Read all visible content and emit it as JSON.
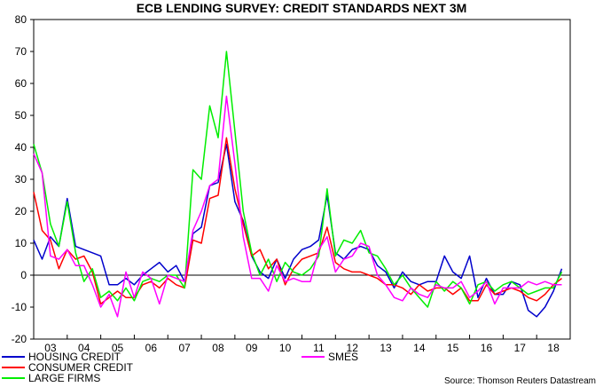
{
  "chart_data": {
    "type": "line",
    "title": "ECB LENDING SURVEY: CREDIT STANDARDS NEXT 3M",
    "source": "Source: Thomson Reuters Datastream",
    "ylim": [
      -20,
      80
    ],
    "yticks": [
      -20,
      -10,
      0,
      10,
      20,
      30,
      40,
      50,
      60,
      70,
      80
    ],
    "xlabels": [
      "03",
      "04",
      "05",
      "06",
      "07",
      "08",
      "09",
      "10",
      "11",
      "12",
      "13",
      "14",
      "15",
      "16",
      "17",
      "18"
    ],
    "x_start": 2003.0,
    "x_end": 2019.0,
    "legend_position": "bottom",
    "series": [
      {
        "name": "HOUSING CREDIT",
        "color": "#0000cc",
        "points": [
          [
            2003.0,
            11
          ],
          [
            2003.25,
            5
          ],
          [
            2003.5,
            12
          ],
          [
            2003.75,
            9
          ],
          [
            2004.0,
            24
          ],
          [
            2004.25,
            9
          ],
          [
            2004.5,
            8
          ],
          [
            2004.75,
            7
          ],
          [
            2005.0,
            6
          ],
          [
            2005.25,
            -3
          ],
          [
            2005.5,
            -3
          ],
          [
            2005.75,
            -1
          ],
          [
            2006.0,
            -3
          ],
          [
            2006.25,
            0
          ],
          [
            2006.5,
            2
          ],
          [
            2006.75,
            4
          ],
          [
            2007.0,
            1
          ],
          [
            2007.25,
            3
          ],
          [
            2007.5,
            -2
          ],
          [
            2007.75,
            13
          ],
          [
            2008.0,
            15
          ],
          [
            2008.25,
            28
          ],
          [
            2008.5,
            29
          ],
          [
            2008.75,
            41
          ],
          [
            2009.0,
            23
          ],
          [
            2009.25,
            17
          ],
          [
            2009.5,
            6
          ],
          [
            2009.75,
            1
          ],
          [
            2010.0,
            -1
          ],
          [
            2010.25,
            5
          ],
          [
            2010.5,
            -1
          ],
          [
            2010.75,
            5
          ],
          [
            2011.0,
            8
          ],
          [
            2011.25,
            9
          ],
          [
            2011.5,
            11
          ],
          [
            2011.75,
            25
          ],
          [
            2012.0,
            7
          ],
          [
            2012.25,
            5
          ],
          [
            2012.5,
            8
          ],
          [
            2012.75,
            9
          ],
          [
            2013.0,
            8
          ],
          [
            2013.25,
            3
          ],
          [
            2013.5,
            1
          ],
          [
            2013.75,
            -4
          ],
          [
            2014.0,
            1
          ],
          [
            2014.25,
            -2
          ],
          [
            2014.5,
            -3
          ],
          [
            2014.75,
            -2
          ],
          [
            2015.0,
            -2
          ],
          [
            2015.25,
            6
          ],
          [
            2015.5,
            1
          ],
          [
            2015.75,
            -1
          ],
          [
            2016.0,
            6
          ],
          [
            2016.25,
            -7
          ],
          [
            2016.5,
            -1
          ],
          [
            2016.75,
            -6
          ],
          [
            2017.0,
            -6
          ],
          [
            2017.25,
            -2
          ],
          [
            2017.5,
            -3
          ],
          [
            2017.75,
            -11
          ],
          [
            2018.0,
            -13
          ],
          [
            2018.25,
            -10
          ],
          [
            2018.5,
            -5
          ],
          [
            2018.75,
            2
          ]
        ]
      },
      {
        "name": "CONSUMER CREDIT",
        "color": "#ff0000",
        "points": [
          [
            2003.0,
            26
          ],
          [
            2003.25,
            14
          ],
          [
            2003.5,
            11
          ],
          [
            2003.75,
            2
          ],
          [
            2004.0,
            8
          ],
          [
            2004.25,
            5
          ],
          [
            2004.5,
            6
          ],
          [
            2004.75,
            1
          ],
          [
            2005.0,
            -9
          ],
          [
            2005.25,
            -7
          ],
          [
            2005.5,
            -5
          ],
          [
            2005.75,
            -7
          ],
          [
            2006.0,
            -7
          ],
          [
            2006.25,
            -3
          ],
          [
            2006.5,
            -2
          ],
          [
            2006.75,
            -4
          ],
          [
            2007.0,
            -1
          ],
          [
            2007.25,
            -3
          ],
          [
            2007.5,
            -4
          ],
          [
            2007.75,
            11
          ],
          [
            2008.0,
            10
          ],
          [
            2008.25,
            24
          ],
          [
            2008.5,
            25
          ],
          [
            2008.75,
            43
          ],
          [
            2009.0,
            27
          ],
          [
            2009.25,
            16
          ],
          [
            2009.5,
            6
          ],
          [
            2009.75,
            8
          ],
          [
            2010.0,
            2
          ],
          [
            2010.25,
            5
          ],
          [
            2010.5,
            -3
          ],
          [
            2010.75,
            2
          ],
          [
            2011.0,
            5
          ],
          [
            2011.25,
            6
          ],
          [
            2011.5,
            7
          ],
          [
            2011.75,
            15
          ],
          [
            2012.0,
            4
          ],
          [
            2012.25,
            2
          ],
          [
            2012.5,
            1
          ],
          [
            2012.75,
            1
          ],
          [
            2013.0,
            0
          ],
          [
            2013.25,
            -1
          ],
          [
            2013.5,
            -3
          ],
          [
            2013.75,
            -3
          ],
          [
            2014.0,
            -4
          ],
          [
            2014.25,
            -6
          ],
          [
            2014.5,
            -3
          ],
          [
            2014.75,
            -5
          ],
          [
            2015.0,
            -4
          ],
          [
            2015.25,
            -4
          ],
          [
            2015.5,
            -6
          ],
          [
            2015.75,
            -4
          ],
          [
            2016.0,
            -8
          ],
          [
            2016.25,
            -8
          ],
          [
            2016.5,
            -3
          ],
          [
            2016.75,
            -6
          ],
          [
            2017.0,
            -5
          ],
          [
            2017.25,
            -4
          ],
          [
            2017.5,
            -5
          ],
          [
            2017.75,
            -7
          ],
          [
            2018.0,
            -8
          ],
          [
            2018.25,
            -6
          ],
          [
            2018.5,
            -3
          ],
          [
            2018.75,
            -1
          ]
        ]
      },
      {
        "name": "LARGE FIRMS",
        "color": "#00ee00",
        "points": [
          [
            2003.0,
            41
          ],
          [
            2003.25,
            32
          ],
          [
            2003.5,
            16
          ],
          [
            2003.75,
            9
          ],
          [
            2004.0,
            23
          ],
          [
            2004.25,
            7
          ],
          [
            2004.5,
            -2
          ],
          [
            2004.75,
            2
          ],
          [
            2005.0,
            -7
          ],
          [
            2005.25,
            -5
          ],
          [
            2005.5,
            -8
          ],
          [
            2005.75,
            -4
          ],
          [
            2006.0,
            -8
          ],
          [
            2006.25,
            -2
          ],
          [
            2006.5,
            -1
          ],
          [
            2006.75,
            -2
          ],
          [
            2007.0,
            0
          ],
          [
            2007.25,
            0
          ],
          [
            2007.5,
            -4
          ],
          [
            2007.75,
            33
          ],
          [
            2008.0,
            30
          ],
          [
            2008.25,
            53
          ],
          [
            2008.5,
            43
          ],
          [
            2008.75,
            70
          ],
          [
            2009.0,
            45
          ],
          [
            2009.25,
            20
          ],
          [
            2009.5,
            7
          ],
          [
            2009.75,
            0
          ],
          [
            2010.0,
            5
          ],
          [
            2010.25,
            -2
          ],
          [
            2010.5,
            4
          ],
          [
            2010.75,
            1
          ],
          [
            2011.0,
            0
          ],
          [
            2011.25,
            2
          ],
          [
            2011.5,
            6
          ],
          [
            2011.75,
            27
          ],
          [
            2012.0,
            6
          ],
          [
            2012.25,
            11
          ],
          [
            2012.5,
            10
          ],
          [
            2012.75,
            14
          ],
          [
            2013.0,
            7
          ],
          [
            2013.25,
            6
          ],
          [
            2013.5,
            2
          ],
          [
            2013.75,
            -3
          ],
          [
            2014.0,
            0
          ],
          [
            2014.25,
            -4
          ],
          [
            2014.5,
            -7
          ],
          [
            2014.75,
            -10
          ],
          [
            2015.0,
            -2
          ],
          [
            2015.25,
            -5
          ],
          [
            2015.5,
            -2
          ],
          [
            2015.75,
            -4
          ],
          [
            2016.0,
            -9
          ],
          [
            2016.25,
            -3
          ],
          [
            2016.5,
            -2
          ],
          [
            2016.75,
            -5
          ],
          [
            2017.0,
            -3
          ],
          [
            2017.25,
            -2
          ],
          [
            2017.5,
            -4
          ],
          [
            2017.75,
            -6
          ],
          [
            2018.0,
            -5
          ],
          [
            2018.25,
            -4
          ],
          [
            2018.5,
            -4
          ],
          [
            2018.75,
            1
          ]
        ]
      },
      {
        "name": "SMES",
        "color": "#ff00ff",
        "points": [
          [
            2003.0,
            38
          ],
          [
            2003.25,
            32
          ],
          [
            2003.5,
            6
          ],
          [
            2003.75,
            5
          ],
          [
            2004.0,
            8
          ],
          [
            2004.25,
            3
          ],
          [
            2004.5,
            3
          ],
          [
            2004.75,
            -3
          ],
          [
            2005.0,
            -10
          ],
          [
            2005.25,
            -6
          ],
          [
            2005.5,
            -13
          ],
          [
            2005.75,
            1
          ],
          [
            2006.0,
            -7
          ],
          [
            2006.25,
            1
          ],
          [
            2006.5,
            -1
          ],
          [
            2006.75,
            -9
          ],
          [
            2007.0,
            0
          ],
          [
            2007.25,
            -1
          ],
          [
            2007.5,
            -2
          ],
          [
            2007.75,
            14
          ],
          [
            2008.0,
            20
          ],
          [
            2008.25,
            28
          ],
          [
            2008.5,
            30
          ],
          [
            2008.75,
            56
          ],
          [
            2009.0,
            35
          ],
          [
            2009.25,
            12
          ],
          [
            2009.5,
            -1
          ],
          [
            2009.75,
            -1
          ],
          [
            2010.0,
            -5
          ],
          [
            2010.25,
            3
          ],
          [
            2010.5,
            -2
          ],
          [
            2010.75,
            -1
          ],
          [
            2011.0,
            -2
          ],
          [
            2011.25,
            -2
          ],
          [
            2011.5,
            8
          ],
          [
            2011.75,
            12
          ],
          [
            2012.0,
            1
          ],
          [
            2012.25,
            5
          ],
          [
            2012.5,
            6
          ],
          [
            2012.75,
            10
          ],
          [
            2013.0,
            9
          ],
          [
            2013.25,
            0
          ],
          [
            2013.5,
            -3
          ],
          [
            2013.75,
            -7
          ],
          [
            2014.0,
            -8
          ],
          [
            2014.25,
            -4
          ],
          [
            2014.5,
            -6
          ],
          [
            2014.75,
            -7
          ],
          [
            2015.0,
            -3
          ],
          [
            2015.25,
            -4
          ],
          [
            2015.5,
            -4
          ],
          [
            2015.75,
            -2
          ],
          [
            2016.0,
            -7
          ],
          [
            2016.25,
            -5
          ],
          [
            2016.5,
            -2
          ],
          [
            2016.75,
            -9
          ],
          [
            2017.0,
            -4
          ],
          [
            2017.25,
            -4
          ],
          [
            2017.5,
            -4
          ],
          [
            2017.75,
            -2
          ],
          [
            2018.0,
            -3
          ],
          [
            2018.25,
            -2
          ],
          [
            2018.5,
            -3
          ],
          [
            2018.75,
            -3
          ]
        ]
      }
    ]
  }
}
